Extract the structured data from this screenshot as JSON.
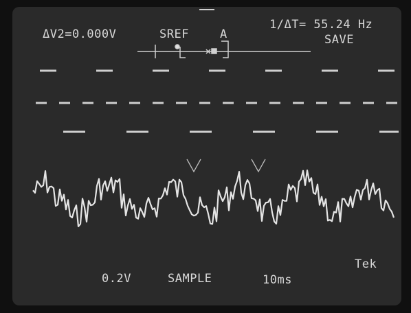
{
  "readout": {
    "delta_v": "ΔV2=0.000V",
    "reference": "SREF",
    "channel": "A",
    "frequency": "1/ΔT= 55.24 Hz",
    "mode_top": "SAVE"
  },
  "footer": {
    "volts_per_div": "0.2V",
    "acquisition": "SAMPLE",
    "time_per_div": "10ms",
    "brand": "Tek"
  }
}
